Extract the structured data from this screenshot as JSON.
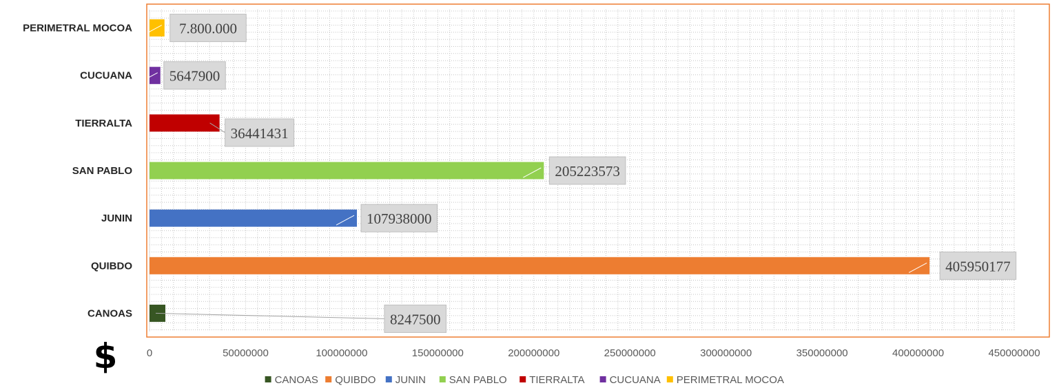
{
  "chart_data": {
    "type": "bar",
    "orientation": "horizontal",
    "categories": [
      "CANOAS",
      "QUIBDO",
      "JUNIN",
      "SAN PABLO",
      "TIERRALTA",
      "CUCUANA",
      "PERIMETRAL MOCOA"
    ],
    "values": [
      8247500,
      405950177,
      107938000,
      205223573,
      36441431,
      5647900,
      7800000
    ],
    "data_labels": [
      "8247500",
      "405950177",
      "107938000",
      "205223573",
      "36441431",
      "5647900",
      "7.800.000"
    ],
    "colors": [
      "#375623",
      "#ED7D31",
      "#4472C4",
      "#92D050",
      "#C00000",
      "#7030A0",
      "#FFC000"
    ],
    "xlim": [
      0,
      450000000
    ],
    "x_ticks": [
      "0",
      "50000000",
      "100000000",
      "150000000",
      "200000000",
      "250000000",
      "300000000",
      "350000000",
      "400000000",
      "450000000"
    ],
    "axis_symbol": "$",
    "grid": true,
    "legend_position": "bottom",
    "title": "",
    "xlabel": "",
    "ylabel": "",
    "plot_border_color": "#ED7D31"
  }
}
